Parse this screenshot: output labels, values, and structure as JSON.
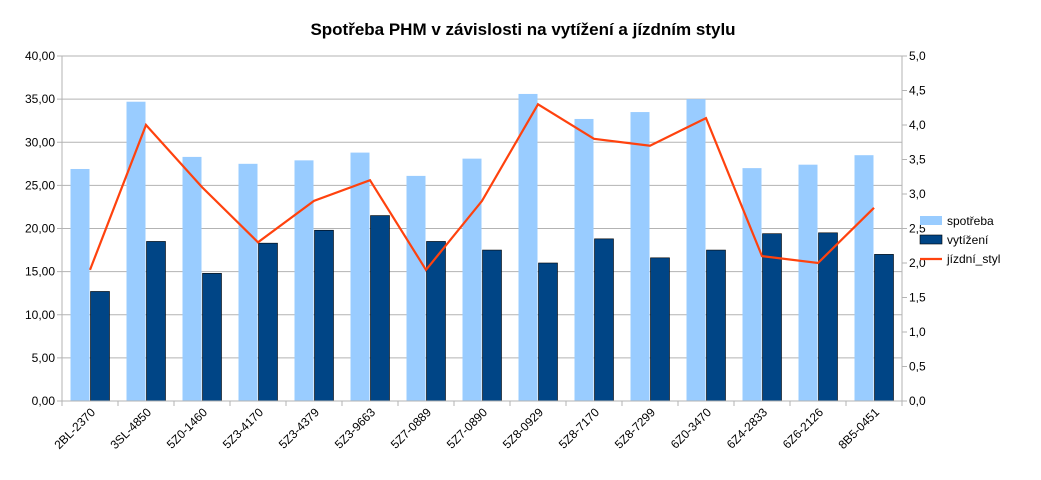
{
  "chart_data": {
    "type": "bar",
    "title": "Spotřeba PHM v závislosti na vytížení a jízdním stylu",
    "categories": [
      "2BL-2370",
      "3SL-4850",
      "5Z0-1460",
      "5Z3-4170",
      "5Z3-4379",
      "5Z3-9663",
      "5Z7-0889",
      "5Z7-0890",
      "5Z8-0929",
      "5Z8-7170",
      "5Z8-7299",
      "6Z0-3470",
      "6Z4-2833",
      "6Z6-2126",
      "8B5-0451"
    ],
    "series": [
      {
        "name": "spotřeba",
        "axis": "left",
        "type": "bar",
        "color": "#99ccff",
        "values": [
          26.9,
          34.7,
          28.3,
          27.5,
          27.9,
          28.8,
          26.1,
          28.1,
          35.6,
          32.7,
          33.5,
          35.0,
          27.0,
          27.4,
          28.5
        ]
      },
      {
        "name": "vytížení",
        "axis": "left",
        "type": "bar",
        "color": "#004586",
        "values": [
          12.7,
          18.5,
          14.8,
          18.3,
          19.8,
          21.5,
          18.5,
          17.5,
          16.0,
          18.8,
          16.6,
          17.5,
          19.4,
          19.5,
          17.0
        ]
      },
      {
        "name": "jízdní_styl",
        "axis": "right",
        "type": "line",
        "color": "#ff420e",
        "values": [
          1.9,
          4.0,
          3.1,
          2.3,
          2.9,
          3.2,
          1.9,
          2.9,
          4.3,
          3.8,
          3.7,
          4.1,
          2.1,
          2.0,
          2.8
        ]
      }
    ],
    "y_left": {
      "min": 0,
      "max": 40,
      "step": 5,
      "tick_labels": [
        "0,00",
        "5,00",
        "10,00",
        "15,00",
        "20,00",
        "25,00",
        "30,00",
        "35,00",
        "40,00"
      ]
    },
    "y_right": {
      "min": 0,
      "max": 5,
      "step": 0.5,
      "tick_labels": [
        "0,0",
        "0,5",
        "1,0",
        "1,5",
        "2,0",
        "2,5",
        "3,0",
        "3,5",
        "4,0",
        "4,5",
        "5,0"
      ]
    },
    "grid": true,
    "legend": "right"
  }
}
